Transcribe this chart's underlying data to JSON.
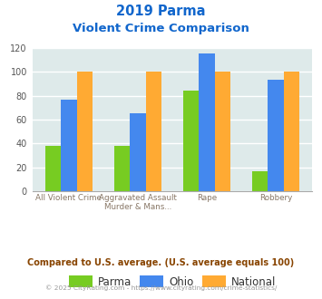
{
  "title_line1": "2019 Parma",
  "title_line2": "Violent Crime Comparison",
  "cat_line1": [
    "All Violent Crime",
    "Aggravated Assault",
    "Rape",
    "Robbery"
  ],
  "cat_line2": [
    "",
    "Murder & Mans...",
    "",
    ""
  ],
  "parma_values": [
    38,
    38,
    84,
    17
  ],
  "ohio_values": [
    77,
    65,
    115,
    93
  ],
  "national_values": [
    100,
    100,
    100,
    100
  ],
  "parma_color": "#77cc22",
  "ohio_color": "#4488ee",
  "national_color": "#ffaa33",
  "bg_color": "#deeaea",
  "ylim": [
    0,
    120
  ],
  "yticks": [
    0,
    20,
    40,
    60,
    80,
    100,
    120
  ],
  "title_color": "#1166cc",
  "footer_text": "Compared to U.S. average. (U.S. average equals 100)",
  "footer_color": "#884400",
  "credit_text": "© 2025 CityRating.com - https://www.cityrating.com/crime-statistics/",
  "credit_color": "#999999",
  "legend_labels": [
    "Parma",
    "Ohio",
    "National"
  ]
}
